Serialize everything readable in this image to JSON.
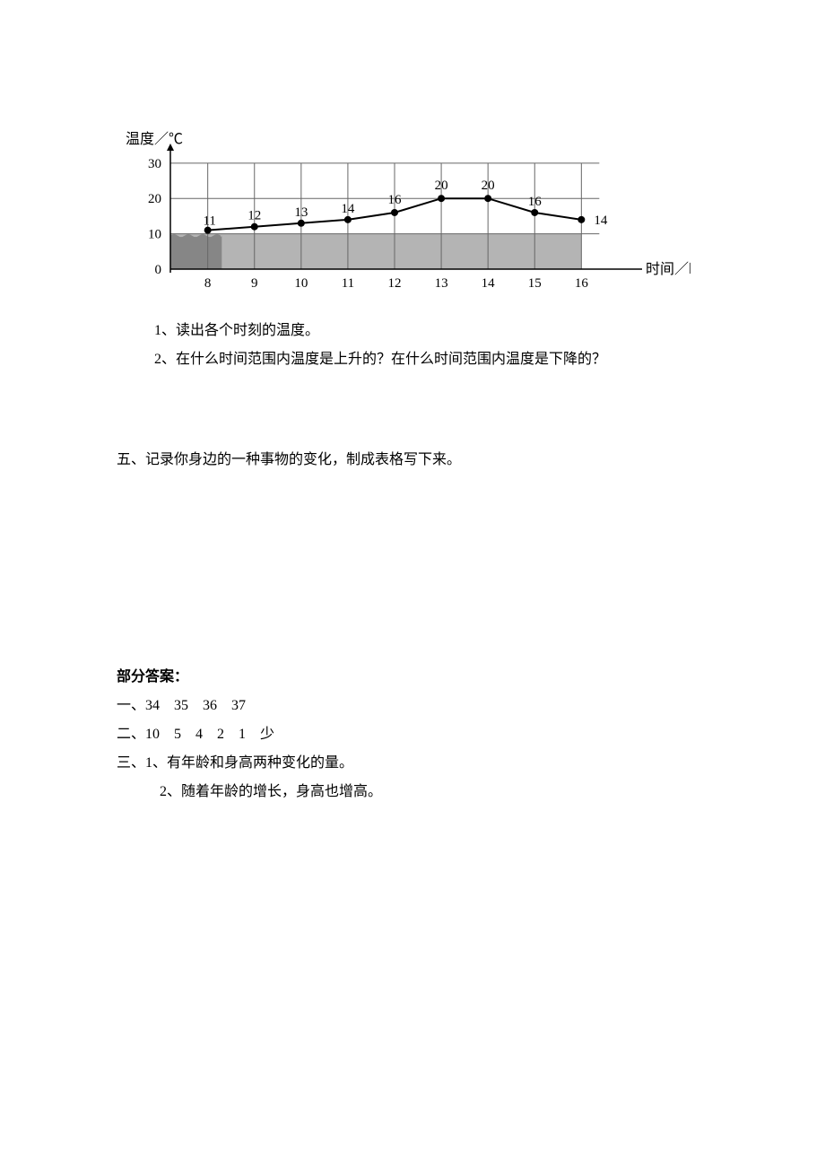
{
  "chart": {
    "type": "line",
    "y_axis_label": "温度／℃",
    "x_axis_label": "时间／时",
    "x_ticks": [
      8,
      9,
      10,
      11,
      12,
      13,
      14,
      15,
      16
    ],
    "y_ticks": [
      0,
      10,
      20,
      30
    ],
    "series": {
      "x": [
        8,
        9,
        10,
        11,
        12,
        13,
        14,
        15,
        16
      ],
      "y": [
        11,
        12,
        13,
        14,
        16,
        20,
        20,
        16,
        14
      ],
      "point_labels": [
        "11",
        "12",
        "13",
        "14",
        "16",
        "20",
        "20",
        "16",
        "14"
      ]
    },
    "ylim": [
      0,
      33
    ],
    "xlim": [
      7.2,
      16.8
    ],
    "line_color": "#000000",
    "point_color": "#000000",
    "grid_color": "#676767",
    "background_color": "#ffffff",
    "shaded_fill": "#777777",
    "shaded_y_top": 10,
    "axis_fontsize": 16,
    "tick_fontsize": 15,
    "point_label_fontsize": 15,
    "point_radius": 4,
    "line_width": 2
  },
  "questions": {
    "q1": "1、读出各个时刻的温度。",
    "q2": "2、在什么时间范围内温度是上升的？在什么时间范围内温度是下降的？"
  },
  "section_five": "五、记录你身边的一种事物的变化，制成表格写下来。",
  "answers": {
    "title": "部分答案：",
    "a1": "一、34　35　36　37",
    "a2": "二、10　5　4　2　1　少",
    "a3_1": "三、1、有年龄和身高两种变化的量。",
    "a3_2": "2、随着年龄的增长，身高也增高。"
  }
}
